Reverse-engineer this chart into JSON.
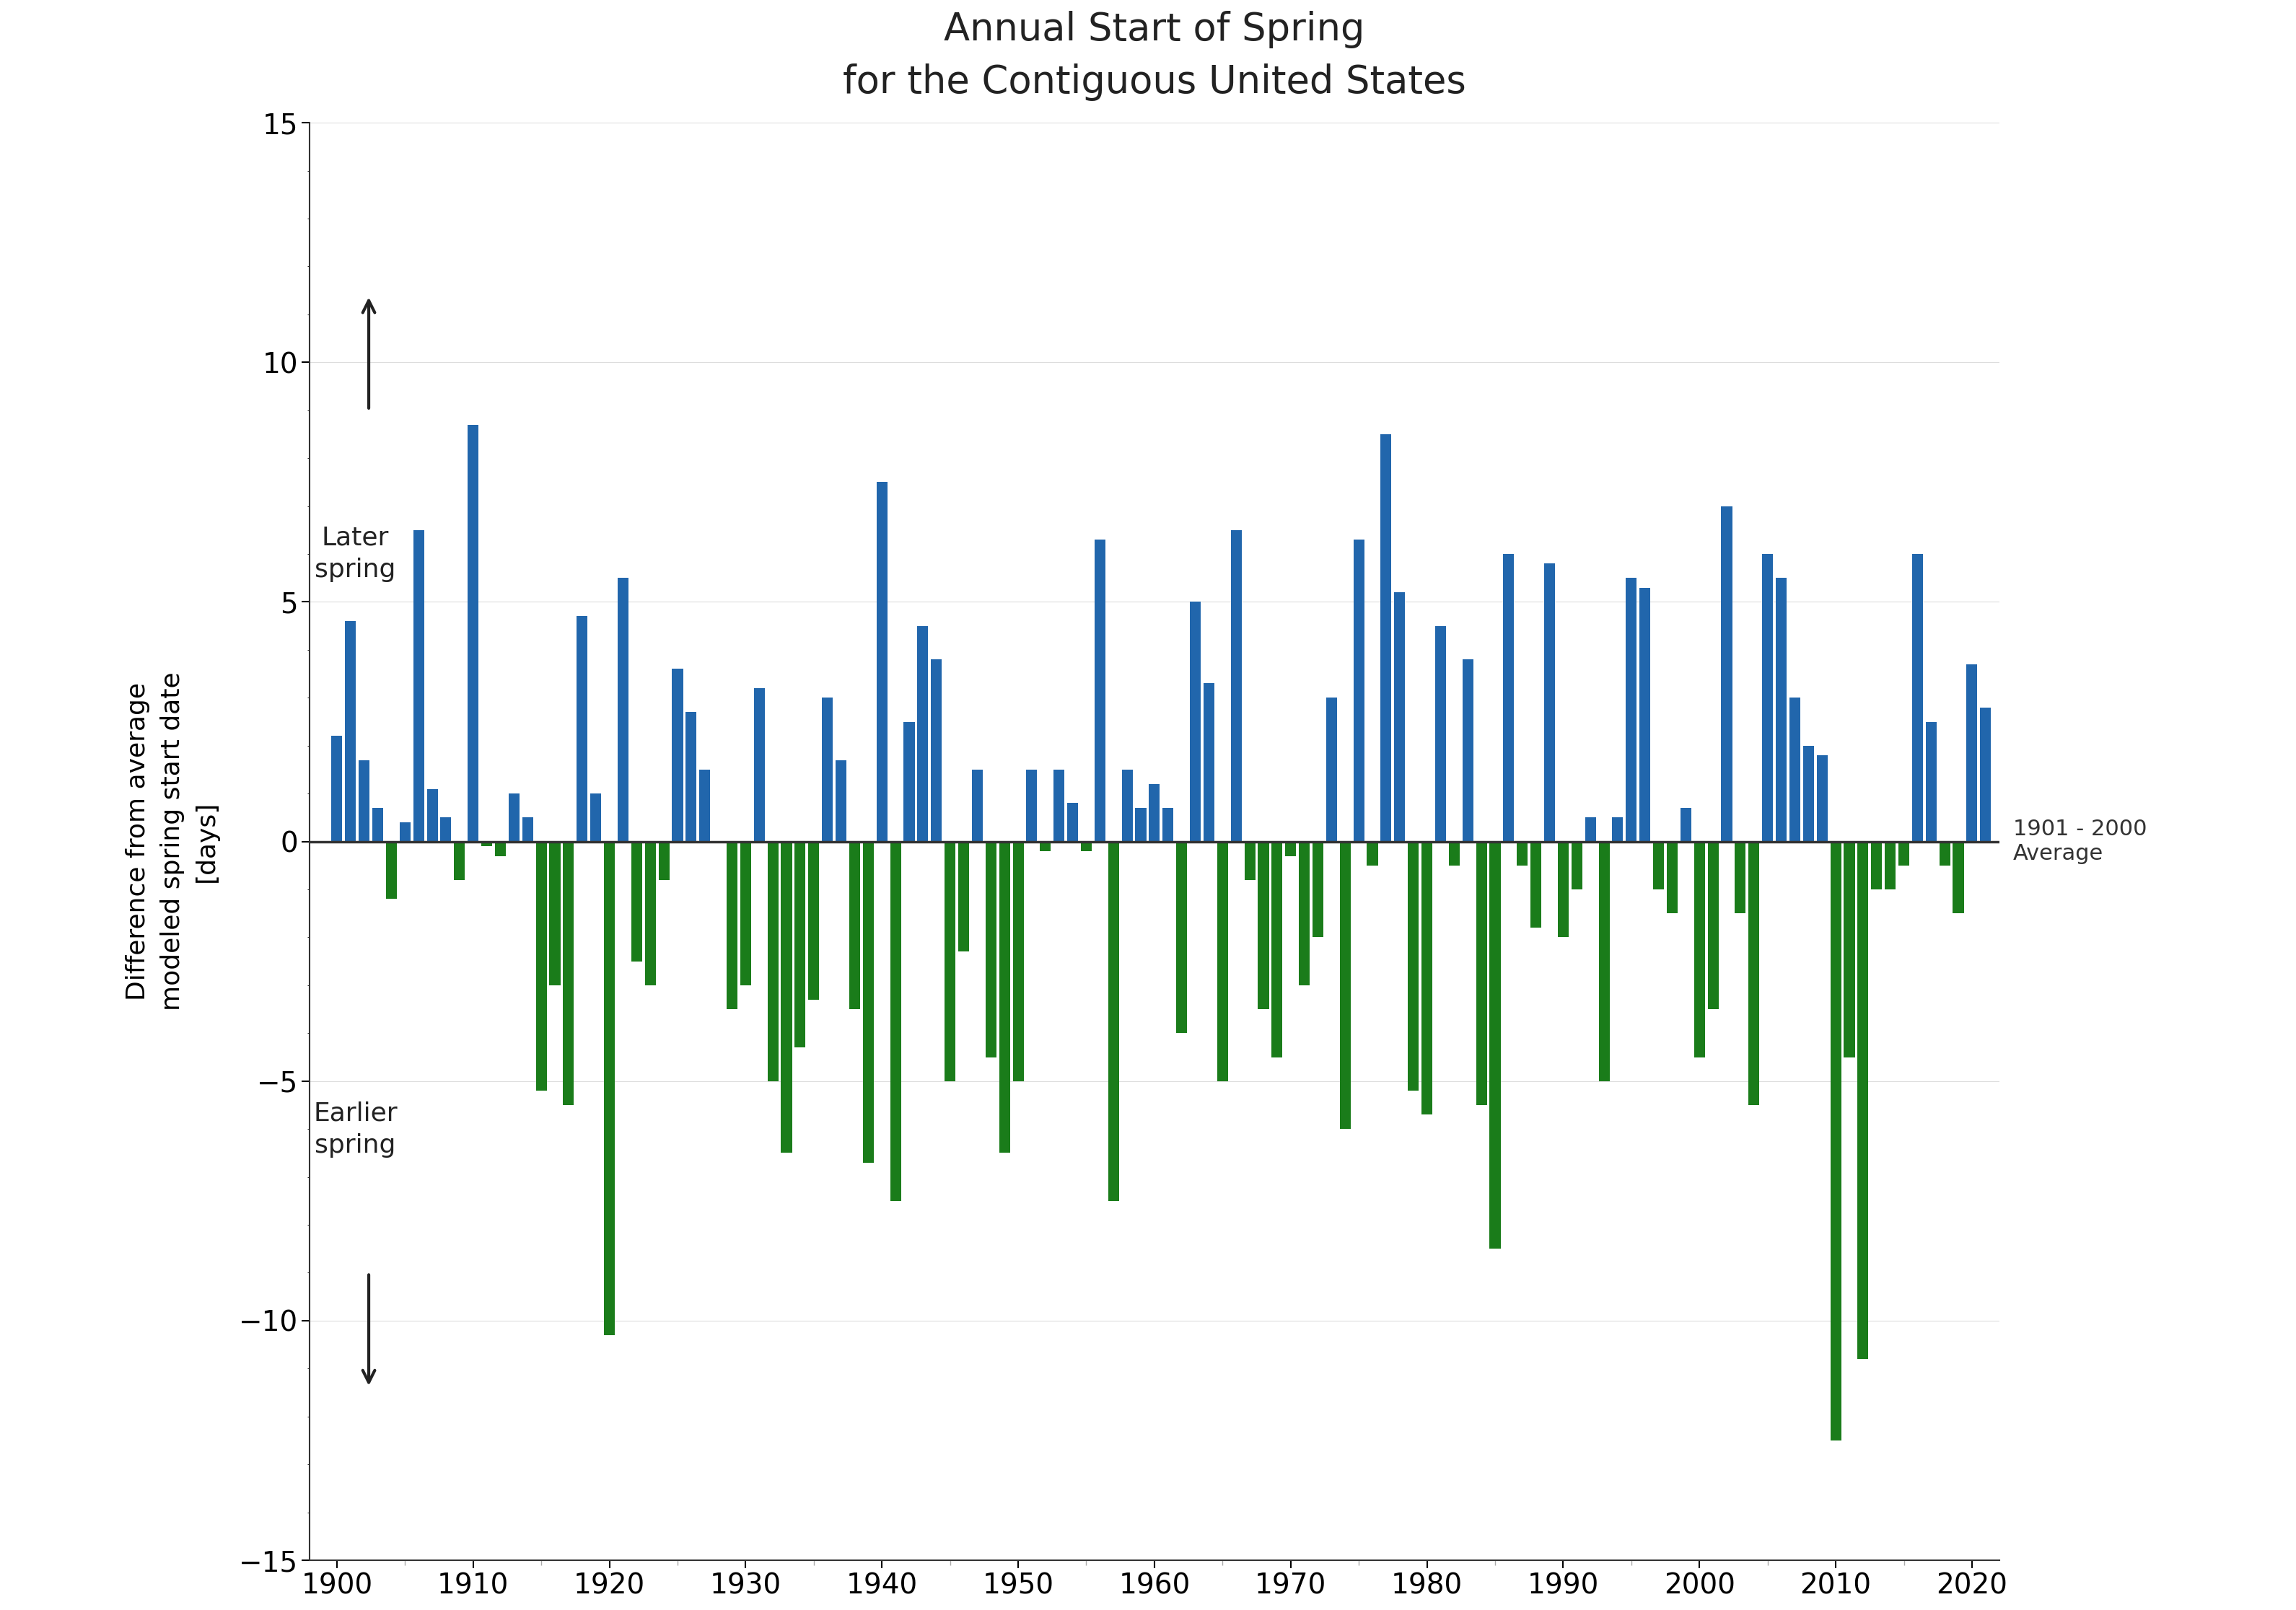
{
  "title_line1": "Annual Start of Spring",
  "title_line2": "for the Contiguous United States",
  "xlabel": "",
  "ylabel": "Difference from average\nmodeled spring start date\n[days]",
  "xlim": [
    1898,
    2022
  ],
  "ylim": [
    -15,
    15
  ],
  "yticks": [
    -15,
    -10,
    -5,
    0,
    5,
    10,
    15
  ],
  "xticks": [
    1900,
    1910,
    1920,
    1930,
    1940,
    1950,
    1960,
    1970,
    1980,
    1990,
    2000,
    2010,
    2020
  ],
  "avg_label": "1901 - 2000\nAverage",
  "color_positive": "#2166ac",
  "color_negative": "#1a7c1a",
  "background": "#ffffff",
  "years": [
    1900,
    1901,
    1902,
    1903,
    1904,
    1905,
    1906,
    1907,
    1908,
    1909,
    1910,
    1911,
    1912,
    1913,
    1914,
    1915,
    1916,
    1917,
    1918,
    1919,
    1920,
    1921,
    1922,
    1923,
    1924,
    1925,
    1926,
    1927,
    1928,
    1929,
    1930,
    1931,
    1932,
    1933,
    1934,
    1935,
    1936,
    1937,
    1938,
    1939,
    1940,
    1941,
    1942,
    1943,
    1944,
    1945,
    1946,
    1947,
    1948,
    1949,
    1950,
    1951,
    1952,
    1953,
    1954,
    1955,
    1956,
    1957,
    1958,
    1959,
    1960,
    1961,
    1962,
    1963,
    1964,
    1965,
    1966,
    1967,
    1968,
    1969,
    1970,
    1971,
    1972,
    1973,
    1974,
    1975,
    1976,
    1977,
    1978,
    1979,
    1980,
    1981,
    1982,
    1983,
    1984,
    1985,
    1986,
    1987,
    1988,
    1989,
    1990,
    1991,
    1992,
    1993,
    1994,
    1995,
    1996,
    1997,
    1998,
    1999,
    2000,
    2001,
    2002,
    2003,
    2004,
    2005,
    2006,
    2007,
    2008,
    2009,
    2010,
    2011,
    2012,
    2013,
    2014,
    2015,
    2016,
    2017,
    2018,
    2019,
    2020,
    2021
  ],
  "values": [
    2.2,
    4.6,
    1.7,
    0.7,
    -1.2,
    0.4,
    6.5,
    1.1,
    0.5,
    -0.8,
    8.7,
    -0.1,
    -0.3,
    1.0,
    0.5,
    -5.2,
    -3.0,
    -5.5,
    4.7,
    1.0,
    -10.3,
    5.5,
    -2.5,
    -3.0,
    -0.8,
    3.6,
    2.7,
    1.5,
    -0.0,
    -3.5,
    -3.0,
    3.2,
    -5.0,
    -6.5,
    -4.3,
    -3.3,
    3.0,
    1.7,
    -3.5,
    -6.7,
    7.5,
    -7.5,
    2.5,
    4.5,
    3.8,
    -5.0,
    -2.3,
    1.5,
    -4.5,
    -6.5,
    -5.0,
    1.5,
    -0.2,
    1.5,
    0.8,
    -0.2,
    6.3,
    -7.5,
    1.5,
    0.7,
    1.2,
    0.7,
    -4.0,
    5.0,
    3.3,
    -5.0,
    6.5,
    -0.8,
    -3.5,
    -4.5,
    -0.3,
    -3.0,
    -2.0,
    3.0,
    -6.0,
    6.3,
    -0.5,
    8.5,
    5.2,
    -5.2,
    -5.7,
    4.5,
    -0.5,
    3.8,
    -5.5,
    -8.5,
    6.0,
    -0.5,
    -1.8,
    5.8,
    -2.0,
    -1.0,
    0.5,
    -5.0,
    0.5,
    5.5,
    5.3,
    -1.0,
    -1.5,
    0.7,
    -4.5,
    -3.5,
    7.0,
    -1.5,
    -5.5,
    6.0,
    5.5,
    3.0,
    2.0,
    1.8,
    -12.5,
    -4.5,
    -10.8,
    -1.0,
    -1.0,
    -0.5,
    6.0,
    2.5,
    -0.5,
    -1.5,
    3.7,
    2.8
  ]
}
